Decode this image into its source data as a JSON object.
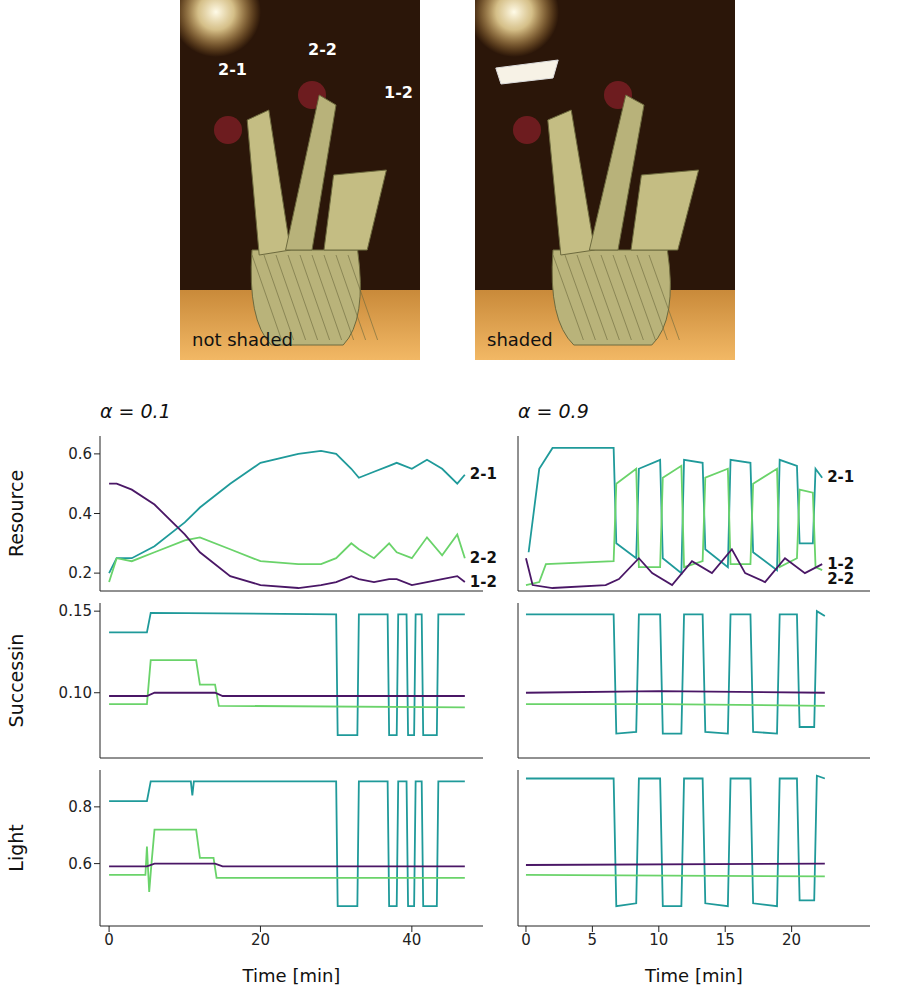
{
  "images": [
    {
      "caption": "not shaded",
      "labels": [
        "2-1",
        "2-2",
        "1-2"
      ]
    },
    {
      "caption": "shaded"
    }
  ],
  "chart_data": [
    {
      "type": "line",
      "title": "α = 0.1",
      "y_label": "Resource",
      "xlim": [
        -1.2,
        49.4
      ],
      "xticks": [
        0,
        20,
        40
      ],
      "ylim": [
        0.14,
        0.66
      ],
      "yticks": [
        0.2,
        0.4,
        0.6
      ],
      "tick_labels": "y",
      "series": [
        {
          "name": "2-1",
          "color": "#1f9a9a",
          "x": [
            0,
            1,
            3,
            6,
            10,
            12,
            16,
            20,
            25,
            28,
            30,
            32,
            33,
            35,
            37,
            38,
            40,
            42,
            44,
            46,
            47
          ],
          "values": [
            0.2,
            0.25,
            0.25,
            0.29,
            0.37,
            0.42,
            0.5,
            0.57,
            0.6,
            0.61,
            0.6,
            0.55,
            0.52,
            0.54,
            0.56,
            0.57,
            0.55,
            0.58,
            0.55,
            0.5,
            0.53
          ]
        },
        {
          "name": "2-2",
          "color": "#6ad36a",
          "x": [
            0,
            1,
            3,
            6,
            10,
            12,
            16,
            20,
            25,
            28,
            30,
            32,
            33,
            35,
            37,
            38,
            40,
            42,
            44,
            46,
            47
          ],
          "values": [
            0.17,
            0.25,
            0.24,
            0.27,
            0.31,
            0.32,
            0.28,
            0.24,
            0.23,
            0.23,
            0.25,
            0.3,
            0.28,
            0.25,
            0.3,
            0.27,
            0.25,
            0.32,
            0.26,
            0.33,
            0.25
          ]
        },
        {
          "name": "1-2",
          "color": "#4a1766",
          "x": [
            0,
            1,
            3,
            6,
            10,
            12,
            16,
            20,
            25,
            28,
            30,
            32,
            33,
            35,
            37,
            38,
            40,
            42,
            44,
            46,
            47
          ],
          "values": [
            0.5,
            0.5,
            0.48,
            0.43,
            0.33,
            0.27,
            0.19,
            0.16,
            0.15,
            0.16,
            0.17,
            0.19,
            0.18,
            0.17,
            0.18,
            0.18,
            0.16,
            0.17,
            0.18,
            0.19,
            0.17
          ]
        }
      ]
    },
    {
      "type": "line",
      "title": "α = 0.9",
      "xlim": [
        -0.6,
        25.9
      ],
      "xticks": [
        0,
        5,
        10,
        15,
        20
      ],
      "ylim": [
        0.14,
        0.66
      ],
      "yticks": [
        0.2,
        0.4,
        0.6
      ],
      "tick_labels": false,
      "series": [
        {
          "name": "2-1",
          "color": "#1f9a9a",
          "x": [
            0.2,
            1,
            2,
            6.6,
            6.8,
            8.3,
            8.5,
            10.1,
            10.3,
            11.7,
            11.9,
            13.3,
            13.5,
            15.2,
            15.4,
            16.9,
            17.1,
            18.9,
            19.1,
            20.4,
            20.6,
            21.6,
            21.8,
            22.3
          ],
          "values": [
            0.27,
            0.55,
            0.62,
            0.62,
            0.3,
            0.25,
            0.55,
            0.58,
            0.25,
            0.2,
            0.58,
            0.57,
            0.28,
            0.22,
            0.58,
            0.57,
            0.27,
            0.21,
            0.58,
            0.56,
            0.3,
            0.3,
            0.55,
            0.52
          ]
        },
        {
          "name": "2-2",
          "color": "#6ad36a",
          "x": [
            0,
            1,
            1.5,
            6.6,
            6.8,
            8.3,
            8.5,
            10.1,
            10.3,
            11.7,
            11.9,
            13.3,
            13.5,
            15.2,
            15.4,
            16.9,
            17.1,
            18.9,
            19.1,
            20.4,
            20.6,
            21.6,
            21.8,
            22.3
          ],
          "values": [
            0.16,
            0.17,
            0.23,
            0.24,
            0.5,
            0.55,
            0.22,
            0.22,
            0.52,
            0.56,
            0.22,
            0.24,
            0.52,
            0.55,
            0.23,
            0.23,
            0.5,
            0.55,
            0.22,
            0.25,
            0.48,
            0.47,
            0.22,
            0.21
          ]
        },
        {
          "name": "1-2",
          "color": "#4a1766",
          "x": [
            0,
            0.5,
            2,
            6,
            7,
            8.5,
            9.5,
            11,
            12.5,
            14,
            15.5,
            16.5,
            18,
            19.5,
            21,
            22.3
          ],
          "values": [
            0.25,
            0.16,
            0.15,
            0.16,
            0.18,
            0.25,
            0.2,
            0.16,
            0.24,
            0.2,
            0.28,
            0.2,
            0.17,
            0.25,
            0.2,
            0.23
          ]
        }
      ]
    },
    {
      "type": "line",
      "y_label": "Successin",
      "xlim": [
        -1.2,
        49.4
      ],
      "xticks": [
        0,
        20,
        40
      ],
      "ylim": [
        0.06,
        0.155
      ],
      "yticks": [
        {
          "value": 0.1,
          "label": "0.10"
        },
        {
          "value": 0.15,
          "label": "0.15"
        }
      ],
      "tick_labels": "y",
      "series": [
        {
          "color": "#1f9a9a",
          "x": [
            0,
            5,
            5.5,
            30,
            30.2,
            32.8,
            33,
            36.8,
            37,
            38,
            38.2,
            39.3,
            39.5,
            40.3,
            40.5,
            41.3,
            41.5,
            43.3,
            43.5,
            47
          ],
          "values": [
            0.137,
            0.137,
            0.149,
            0.148,
            0.074,
            0.074,
            0.148,
            0.148,
            0.074,
            0.074,
            0.148,
            0.148,
            0.074,
            0.074,
            0.148,
            0.148,
            0.074,
            0.074,
            0.148,
            0.148
          ]
        },
        {
          "color": "#6ad36a",
          "x": [
            0,
            5,
            5.5,
            11.5,
            12,
            14,
            14.5,
            47
          ],
          "values": [
            0.093,
            0.093,
            0.12,
            0.12,
            0.105,
            0.105,
            0.092,
            0.091
          ]
        },
        {
          "color": "#4a1766",
          "x": [
            0,
            5,
            6,
            14,
            15,
            47
          ],
          "values": [
            0.098,
            0.098,
            0.1,
            0.1,
            0.098,
            0.098
          ]
        }
      ]
    },
    {
      "type": "line",
      "xlim": [
        -0.6,
        25.9
      ],
      "xticks": [
        0,
        5,
        10,
        15,
        20
      ],
      "ylim": [
        0.06,
        0.155
      ],
      "yticks": [
        {
          "value": 0.1,
          "label": "0.10"
        },
        {
          "value": 0.15,
          "label": "0.15"
        }
      ],
      "tick_labels": false,
      "series": [
        {
          "color": "#1f9a9a",
          "x": [
            0,
            6.6,
            6.8,
            8.3,
            8.5,
            10.1,
            10.3,
            11.7,
            11.9,
            13.3,
            13.5,
            15.2,
            15.4,
            16.9,
            17.1,
            18.9,
            19.1,
            20.4,
            20.6,
            21.7,
            21.9,
            22.5
          ],
          "values": [
            0.148,
            0.148,
            0.075,
            0.076,
            0.148,
            0.148,
            0.075,
            0.075,
            0.148,
            0.148,
            0.076,
            0.075,
            0.148,
            0.148,
            0.076,
            0.075,
            0.148,
            0.148,
            0.079,
            0.079,
            0.15,
            0.147
          ]
        },
        {
          "color": "#6ad36a",
          "x": [
            0,
            10,
            22.5
          ],
          "values": [
            0.093,
            0.093,
            0.092
          ]
        },
        {
          "color": "#4a1766",
          "x": [
            0,
            10,
            22.5
          ],
          "values": [
            0.1,
            0.101,
            0.1
          ]
        }
      ]
    },
    {
      "type": "line",
      "y_label": "Light",
      "x_label": "Time [min]",
      "xlim": [
        -1.2,
        49.4
      ],
      "xticks": [
        0,
        20,
        40
      ],
      "ylim": [
        0.38,
        0.93
      ],
      "yticks": [
        0.6,
        0.8
      ],
      "tick_labels": true,
      "series": [
        {
          "color": "#1f9a9a",
          "x": [
            0,
            5,
            5.5,
            10.8,
            11,
            11.2,
            30,
            30.2,
            32.8,
            33,
            36.8,
            37,
            38,
            38.2,
            39.3,
            39.5,
            40.3,
            40.5,
            41.3,
            41.5,
            43.3,
            43.5,
            47
          ],
          "values": [
            0.82,
            0.82,
            0.89,
            0.89,
            0.84,
            0.89,
            0.89,
            0.45,
            0.45,
            0.89,
            0.89,
            0.45,
            0.45,
            0.89,
            0.89,
            0.45,
            0.45,
            0.89,
            0.89,
            0.45,
            0.45,
            0.89,
            0.89
          ]
        },
        {
          "color": "#6ad36a",
          "x": [
            0,
            4.8,
            5,
            5.3,
            5.6,
            6,
            11.5,
            12,
            13.8,
            14.2,
            47
          ],
          "values": [
            0.56,
            0.56,
            0.66,
            0.5,
            0.6,
            0.72,
            0.72,
            0.62,
            0.62,
            0.55,
            0.55
          ]
        },
        {
          "color": "#4a1766",
          "x": [
            0,
            5,
            6,
            14,
            15,
            47
          ],
          "values": [
            0.59,
            0.59,
            0.6,
            0.6,
            0.59,
            0.59
          ]
        }
      ]
    },
    {
      "type": "line",
      "x_label": "Time [min]",
      "xlim": [
        -0.6,
        25.9
      ],
      "xticks": [
        0,
        5,
        10,
        15,
        20
      ],
      "ylim": [
        0.38,
        0.93
      ],
      "yticks": [
        0.6,
        0.8
      ],
      "tick_labels": "x",
      "series": [
        {
          "color": "#1f9a9a",
          "x": [
            0,
            6.6,
            6.8,
            8.3,
            8.5,
            10.1,
            10.3,
            11.7,
            11.9,
            13.3,
            13.5,
            15.2,
            15.4,
            16.9,
            17.1,
            18.9,
            19.1,
            20.4,
            20.6,
            21.7,
            21.9,
            22.5
          ],
          "values": [
            0.9,
            0.9,
            0.45,
            0.46,
            0.9,
            0.9,
            0.45,
            0.45,
            0.9,
            0.9,
            0.46,
            0.45,
            0.9,
            0.9,
            0.46,
            0.45,
            0.9,
            0.9,
            0.47,
            0.47,
            0.91,
            0.9
          ]
        },
        {
          "color": "#6ad36a",
          "x": [
            0,
            22.5
          ],
          "values": [
            0.56,
            0.555
          ]
        },
        {
          "color": "#4a1766",
          "x": [
            0,
            22.5
          ],
          "values": [
            0.595,
            0.6
          ]
        }
      ]
    }
  ]
}
